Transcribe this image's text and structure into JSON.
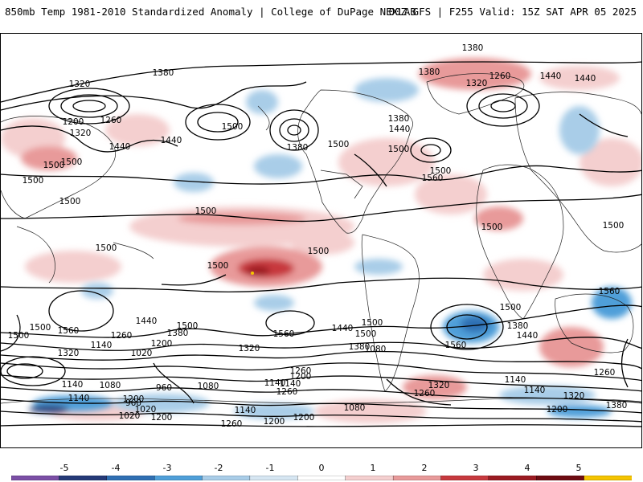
{
  "header": {
    "title_left": "850mb Temp 1981-2010 Standardized Anomaly | College of DuPage NEXLAB",
    "title_right": "00Z GFS | F255 Valid: 15Z SAT APR 05 2025"
  },
  "colorbar": {
    "labels": [
      "-5",
      "-4",
      "-3",
      "-2",
      "-1",
      "0",
      "1",
      "2",
      "3",
      "4",
      "5"
    ],
    "colors": [
      "#7b4fa6",
      "#253a78",
      "#2f6fb3",
      "#4f9fd9",
      "#a9cde8",
      "#d6e6f2",
      "#ffffff",
      "#f4cfcf",
      "#e89a9a",
      "#c7393e",
      "#9b1b22",
      "#6e0c12",
      "#f5c400"
    ]
  },
  "contour_labels": [
    "1380",
    "1380",
    "1380",
    "1380",
    "1320",
    "1260",
    "1440",
    "1440",
    "1380",
    "1320",
    "1200",
    "1260",
    "1320",
    "1440",
    "1500",
    "1440",
    "1500",
    "1380",
    "1500",
    "1500",
    "1380",
    "1440",
    "1500",
    "1560",
    "1500",
    "1500",
    "1500",
    "1500",
    "1500",
    "1500",
    "1500",
    "1500",
    "1500",
    "1560",
    "1500",
    "1440",
    "1500",
    "1380",
    "1560",
    "1500",
    "1440",
    "1380",
    "1500",
    "1560",
    "1440",
    "1380",
    "1500",
    "1320",
    "1140",
    "1260",
    "1020",
    "1200",
    "1320",
    "1080",
    "1260",
    "1200",
    "1140",
    "1320",
    "1260",
    "1140",
    "1080",
    "1200",
    "1140",
    "1200",
    "1020",
    "960",
    "1080",
    "1140",
    "1260",
    "1200",
    "1080",
    "1140",
    "1200",
    "1260",
    "1320",
    "1380",
    "1200",
    "1260",
    "1140",
    "1020",
    "960",
    "1500",
    "1560",
    "1140"
  ]
}
